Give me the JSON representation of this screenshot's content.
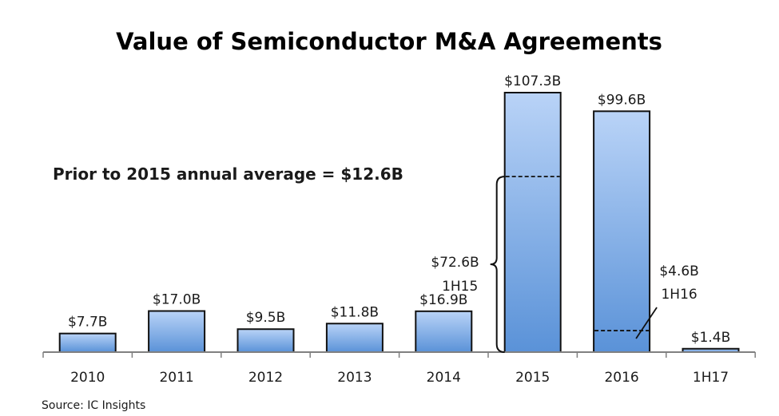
{
  "chart_data": {
    "type": "bar",
    "title": "Value of Semiconductor M&A Agreements",
    "categories": [
      "2010",
      "2011",
      "2012",
      "2013",
      "2014",
      "2015",
      "2016",
      "1H17"
    ],
    "values": [
      7.7,
      17.0,
      9.5,
      11.8,
      16.9,
      107.3,
      99.6,
      1.4
    ],
    "value_labels": [
      "$7.7B",
      "$17.0B",
      "$9.5B",
      "$11.8B",
      "$16.9B",
      "$107.3B",
      "$99.6B",
      "$1.4B"
    ],
    "xlabel": "",
    "ylabel": "",
    "ylim": [
      0,
      107.3
    ],
    "grid": false,
    "colors": {
      "bar_top": "#b9d3f7",
      "bar_bottom": "#5a92d8",
      "bar_stroke": "#111111",
      "axis": "#808080"
    },
    "annotations": {
      "average_note": "Prior to 2015 annual average = $12.6B",
      "split_2015": {
        "value": 72.6,
        "label_value": "$72.6B",
        "label_period": "1H15"
      },
      "split_2016": {
        "value": 4.6,
        "label_value": "$4.6B",
        "label_period": "1H16"
      }
    },
    "source": "Source: IC Insights"
  }
}
